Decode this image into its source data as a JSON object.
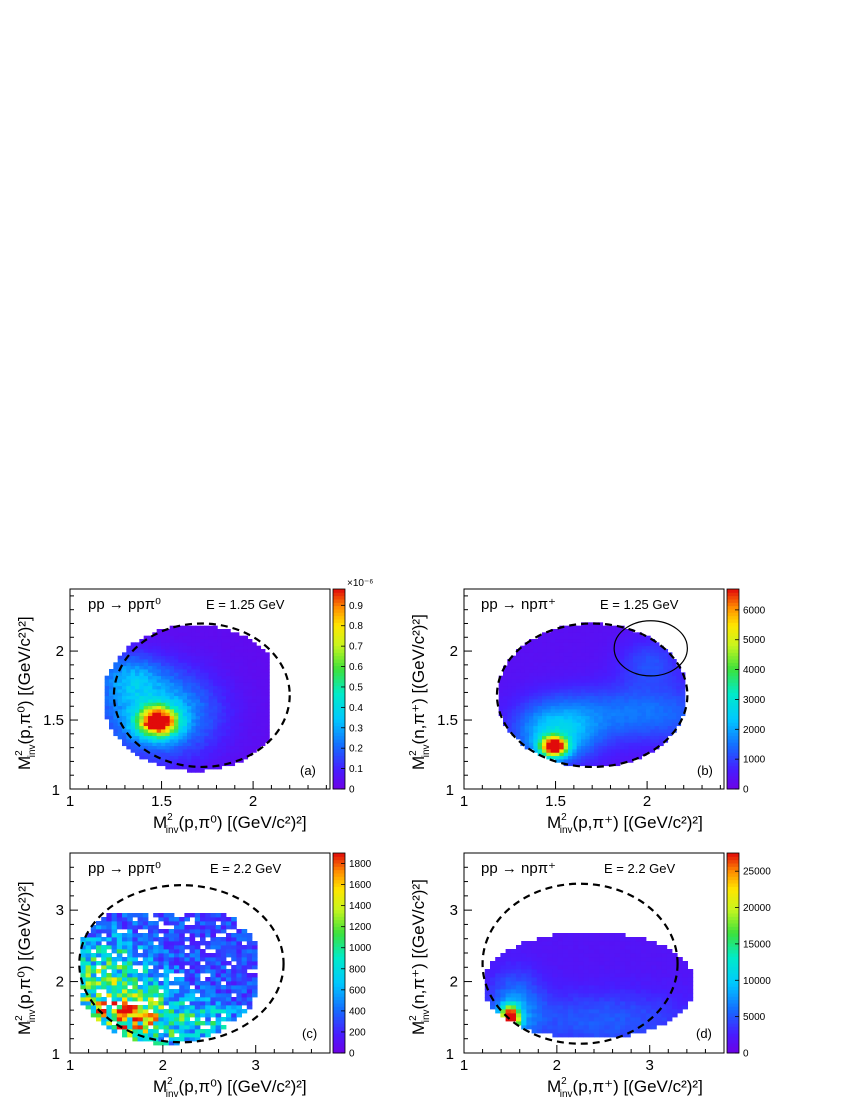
{
  "chart_data": [
    {
      "id": "a",
      "type": "heatmap",
      "title": "pp → ppπ⁰",
      "annotation": "E = 1.25 GeV",
      "tag": "(a)",
      "x_axis": {
        "base": "M",
        "sup": "2",
        "sub": "inv",
        "arg": "(p,π⁰) [(GeV/c²)²]"
      },
      "y_axis": {
        "base": "M",
        "sup": "2",
        "sub": "inv",
        "arg": "(p,π⁰) [(GeV/c²)²]"
      },
      "xlim": [
        1.0,
        2.42
      ],
      "ylim": [
        1.0,
        2.45
      ],
      "xticks": [
        1,
        1.5,
        2
      ],
      "xtick_labels": [
        "1",
        "1.5",
        "2"
      ],
      "yticks": [
        1.5,
        2
      ],
      "ytick_labels": [
        "1.5",
        "2"
      ],
      "corner_label": "1",
      "zlim": [
        0,
        0.98
      ],
      "zticks": [
        0,
        0.1,
        0.2,
        0.3,
        0.4,
        0.5,
        0.6,
        0.7,
        0.8,
        0.9
      ],
      "ztick_labels": [
        "0",
        "0.1",
        "0.2",
        "0.3",
        "0.4",
        "0.5",
        "0.6",
        "0.7",
        "0.8",
        "0.9"
      ],
      "z_exponent": "×10⁻⁶",
      "boundary": {
        "cx": 1.72,
        "cy": 1.68,
        "rx": 0.48,
        "ry": 0.52
      },
      "accept": {
        "cx": 1.68,
        "cy": 1.66,
        "rx": 0.5,
        "ry": 0.53,
        "xmin": 1.16,
        "xmax": 2.08
      },
      "blobs": [
        {
          "x": 1.48,
          "y": 1.49,
          "sx": 0.07,
          "sy": 0.07,
          "a": 0.95
        },
        {
          "x": 1.48,
          "y": 1.55,
          "sx": 0.22,
          "sy": 0.22,
          "a": 0.32
        },
        {
          "x": 1.32,
          "y": 1.82,
          "sx": 0.12,
          "sy": 0.12,
          "a": 0.18
        }
      ],
      "floor": 0.035,
      "nx": 60,
      "ny": 60,
      "fluct": 0.1
    },
    {
      "id": "b",
      "type": "heatmap",
      "title": "pp → npπ⁺",
      "annotation": "E = 1.25 GeV",
      "tag": "(b)",
      "x_axis": {
        "base": "M",
        "sup": "2",
        "sub": "inv",
        "arg": "(p,π⁺) [(GeV/c²)²]"
      },
      "y_axis": {
        "base": "M",
        "sup": "2",
        "sub": "inv",
        "arg": "(n,π⁺) [(GeV/c²)²]"
      },
      "xlim": [
        1.0,
        2.42
      ],
      "ylim": [
        1.0,
        2.45
      ],
      "xticks": [
        1,
        1.5,
        2
      ],
      "xtick_labels": [
        "1",
        "1.5",
        "2"
      ],
      "yticks": [
        1.5,
        2
      ],
      "ytick_labels": [
        "1.5",
        "2"
      ],
      "corner_label": "1",
      "zlim": [
        0,
        6700
      ],
      "zticks": [
        0,
        1000,
        2000,
        3000,
        4000,
        5000,
        6000
      ],
      "ztick_labels": [
        "0",
        "1000",
        "2000",
        "3000",
        "4000",
        "5000",
        "6000"
      ],
      "z_exponent": "",
      "boundary": {
        "cx": 1.7,
        "cy": 1.68,
        "rx": 0.52,
        "ry": 0.52
      },
      "accept": {
        "cx": 1.7,
        "cy": 1.68,
        "rx": 0.52,
        "ry": 0.52,
        "xmin": 1.2,
        "xmax": 2.2
      },
      "circle": {
        "cx": 2.02,
        "cy": 2.02,
        "rx": 0.2,
        "ry": 0.2
      },
      "blobs": [
        {
          "x": 1.49,
          "y": 1.31,
          "sx": 0.05,
          "sy": 0.05,
          "a": 6400
        },
        {
          "x": 1.5,
          "y": 1.4,
          "sx": 0.15,
          "sy": 0.15,
          "a": 2000
        },
        {
          "x": 1.95,
          "y": 1.55,
          "sx": 0.35,
          "sy": 0.15,
          "a": 1200
        },
        {
          "x": 2.02,
          "y": 1.92,
          "sx": 0.12,
          "sy": 0.12,
          "a": 800
        }
      ],
      "floor": 350,
      "nx": 60,
      "ny": 60,
      "fluct": 0.05
    },
    {
      "id": "c",
      "type": "heatmap",
      "title": "pp → ppπ⁰",
      "annotation": "E = 2.2 GeV",
      "tag": "(c)",
      "x_axis": {
        "base": "M",
        "sup": "2",
        "sub": "inv",
        "arg": "(p,π⁰) [(GeV/c²)²]"
      },
      "y_axis": {
        "base": "M",
        "sup": "2",
        "sub": "inv",
        "arg": "(p,π⁰) [(GeV/c²)²]"
      },
      "xlim": [
        1.0,
        3.8
      ],
      "ylim": [
        1.0,
        3.8
      ],
      "xticks": [
        1,
        2,
        3
      ],
      "xtick_labels": [
        "1",
        "2",
        "3"
      ],
      "yticks": [
        2,
        3
      ],
      "ytick_labels": [
        "2",
        "3"
      ],
      "corner_label": "1",
      "zlim": [
        0,
        1900
      ],
      "zticks": [
        0,
        200,
        400,
        600,
        800,
        1000,
        1200,
        1400,
        1600,
        1800
      ],
      "ztick_labels": [
        "0",
        "200",
        "400",
        "600",
        "800",
        "1000",
        "1200",
        "1400",
        "1600",
        "1800"
      ],
      "z_exponent": "",
      "boundary": {
        "cx": 2.2,
        "cy": 2.25,
        "rx": 1.1,
        "ry": 1.1
      },
      "accept": {
        "cx": 2.05,
        "cy": 2.15,
        "rx": 1.02,
        "ry": 1.02,
        "xmin": 1.1,
        "xmax": 3.0,
        "ymax": 2.98
      },
      "blobs": [
        {
          "x": 1.5,
          "y": 1.55,
          "sx": 0.4,
          "sy": 0.4,
          "a": 1000
        },
        {
          "x": 1.35,
          "y": 2.3,
          "sx": 0.3,
          "sy": 0.3,
          "a": 450
        },
        {
          "x": 2.3,
          "y": 1.45,
          "sx": 0.45,
          "sy": 0.2,
          "a": 450
        }
      ],
      "floor": 300,
      "nx": 50,
      "ny": 50,
      "fluct": 0.55
    },
    {
      "id": "d",
      "type": "heatmap",
      "title": "pp → npπ⁺",
      "annotation": "E = 2.2 GeV",
      "tag": "(d)",
      "x_axis": {
        "base": "M",
        "sup": "2",
        "sub": "inv",
        "arg": "(p,π⁺) [(GeV/c²)²]"
      },
      "y_axis": {
        "base": "M",
        "sup": "2",
        "sub": "inv",
        "arg": "(n,π⁺) [(GeV/c²)²]"
      },
      "xlim": [
        1.0,
        3.8
      ],
      "ylim": [
        1.0,
        3.8
      ],
      "xticks": [
        1,
        2,
        3
      ],
      "xtick_labels": [
        "1",
        "2",
        "3"
      ],
      "yticks": [
        2,
        3
      ],
      "ytick_labels": [
        "2",
        "3"
      ],
      "corner_label": "1",
      "zlim": [
        0,
        27500
      ],
      "zticks": [
        0,
        5000,
        10000,
        15000,
        20000,
        25000
      ],
      "ztick_labels": [
        "0",
        "5000",
        "10000",
        "15000",
        "20000",
        "25000"
      ],
      "z_exponent": "",
      "boundary": {
        "cx": 2.25,
        "cy": 2.25,
        "rx": 1.05,
        "ry": 1.12
      },
      "accept": {
        "cx": 2.35,
        "cy": 1.95,
        "rx": 1.15,
        "ry": 0.75,
        "xmin": 1.25,
        "xmax": 3.45,
        "ymax": 2.7
      },
      "blobs": [
        {
          "x": 1.5,
          "y": 1.5,
          "sx": 0.07,
          "sy": 0.11,
          "a": 26000
        },
        {
          "x": 1.55,
          "y": 1.65,
          "sx": 0.2,
          "sy": 0.35,
          "a": 5000
        },
        {
          "x": 2.5,
          "y": 1.45,
          "sx": 0.7,
          "sy": 0.3,
          "a": 3500
        }
      ],
      "floor": 1800,
      "nx": 50,
      "ny": 50,
      "fluct": 0.08
    }
  ]
}
